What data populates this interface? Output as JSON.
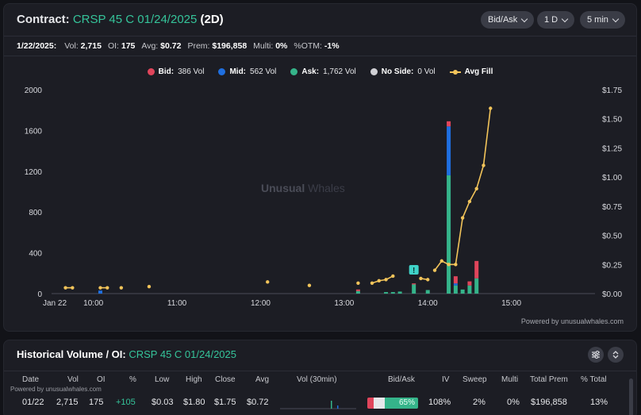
{
  "header": {
    "prefix": "Contract:",
    "contract": "CRSP 45 C 01/24/2025",
    "tag": "(2D)",
    "controls": {
      "side": "Bid/Ask",
      "range": "1 D",
      "interval": "5 min"
    }
  },
  "stats": {
    "date": "1/22/2025:",
    "vol_label": "Vol:",
    "vol": "2,715",
    "oi_label": "OI:",
    "oi": "175",
    "avg_label": "Avg:",
    "avg": "$0.72",
    "prem_label": "Prem:",
    "prem": "$196,858",
    "multi_label": "Multi:",
    "multi": "0%",
    "otm_label": "%OTM:",
    "otm": "-1%"
  },
  "legend": {
    "bid": "Bid:",
    "bid_vol": "386 Vol",
    "mid": "Mid:",
    "mid_vol": "562 Vol",
    "ask": "Ask:",
    "ask_vol": "1,762 Vol",
    "noside": "No Side:",
    "noside_vol": "0 Vol",
    "avgfill": "Avg Fill"
  },
  "colors": {
    "bid": "#e0455b",
    "mid": "#1f6fe0",
    "ask": "#35b48a",
    "noside": "#d0d0d5",
    "avgfill": "#f2c45a"
  },
  "watermark": {
    "a": "Unusual",
    "b": "Whales"
  },
  "powered_by": "Powered by unusualwhales.com",
  "chart_data": {
    "type": "bar",
    "x_start_label": "Jan 22",
    "x_ticks": [
      "10:00",
      "11:00",
      "12:00",
      "13:00",
      "14:00",
      "15:00"
    ],
    "y_left_ticks": [
      "0",
      "400",
      "800",
      "1200",
      "1600",
      "2000"
    ],
    "y_right_ticks": [
      "$0.00",
      "$0.25",
      "$0.50",
      "$0.75",
      "$1.00",
      "$1.25",
      "$1.50",
      "$1.75"
    ],
    "ylim_left": [
      0,
      2000
    ],
    "ylim_right": [
      0,
      1.75
    ],
    "bars": [
      {
        "t": "10:05",
        "ask": 0,
        "mid": 30,
        "bid": 0
      },
      {
        "t": "13:10",
        "ask": 25,
        "mid": 0,
        "bid": 15
      },
      {
        "t": "13:30",
        "ask": 15,
        "mid": 0,
        "bid": 0
      },
      {
        "t": "13:35",
        "ask": 15,
        "mid": 0,
        "bid": 0
      },
      {
        "t": "13:40",
        "ask": 20,
        "mid": 0,
        "bid": 0
      },
      {
        "t": "13:50",
        "ask": 90,
        "mid": 0,
        "bid": 10
      },
      {
        "t": "14:00",
        "ask": 35,
        "mid": 0,
        "bid": 0
      },
      {
        "t": "14:15",
        "ask": 1160,
        "mid": 480,
        "bid": 50
      },
      {
        "t": "14:20",
        "ask": 80,
        "mid": 20,
        "bid": 70
      },
      {
        "t": "14:25",
        "ask": 40,
        "mid": 0,
        "bid": 0
      },
      {
        "t": "14:30",
        "ask": 80,
        "mid": 0,
        "bid": 40
      },
      {
        "t": "14:35",
        "ask": 150,
        "mid": 0,
        "bid": 170
      }
    ],
    "avg_fill": [
      [
        "09:40",
        0.05
      ],
      [
        "09:45",
        0.05
      ],
      [
        "10:05",
        0.05
      ],
      [
        "10:10",
        0.05
      ],
      [
        "10:20",
        0.05
      ],
      [
        "10:40",
        0.06
      ],
      [
        "12:05",
        0.1
      ],
      [
        "12:35",
        0.07
      ],
      [
        "13:10",
        0.09
      ],
      [
        "13:20",
        0.09
      ],
      [
        "13:25",
        0.11
      ],
      [
        "13:30",
        0.12
      ],
      [
        "13:35",
        0.15
      ],
      [
        "13:55",
        0.13
      ],
      [
        "14:00",
        0.12
      ],
      [
        "14:05",
        0.2
      ],
      [
        "14:10",
        0.28
      ],
      [
        "14:15",
        0.25
      ],
      [
        "14:20",
        0.25
      ],
      [
        "14:25",
        0.65
      ],
      [
        "14:30",
        0.79
      ],
      [
        "14:35",
        0.9
      ],
      [
        "14:40",
        1.1
      ],
      [
        "14:45",
        1.59
      ]
    ],
    "flag_label": "!"
  },
  "history": {
    "title": "Historical Volume / OI:",
    "contract": "CRSP 45 C 01/24/2025",
    "powered": "Powered by unusualwhales.com",
    "columns": [
      "Date",
      "Vol",
      "OI",
      "%",
      "Low",
      "High",
      "Close",
      "Avg",
      "Vol (30min)",
      "Bid/Ask",
      "IV",
      "Sweep",
      "Multi",
      "Total Prem",
      "% Total"
    ],
    "row": {
      "date": "01/22",
      "vol": "2,715",
      "oi": "175",
      "pct": "+105",
      "low": "$0.03",
      "high": "$1.80",
      "close": "$1.75",
      "avg": "$0.72",
      "bidask": "65%",
      "iv": "108%",
      "sweep": "2%",
      "multi": "0%",
      "total_prem": "$196,858",
      "pct_total": "13%"
    }
  }
}
